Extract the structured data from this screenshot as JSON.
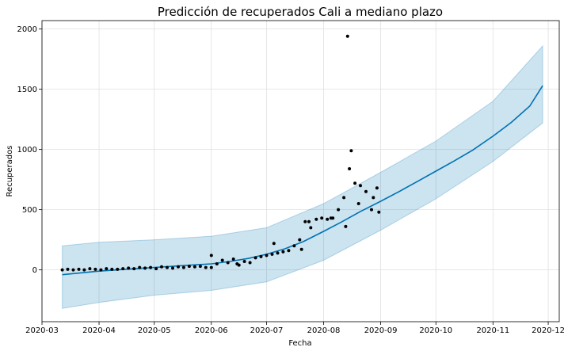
{
  "chart_data": {
    "type": "line",
    "title": "Predicción de recuperados Cali a mediano plazo",
    "xlabel": "Fecha",
    "ylabel": "Recuperados",
    "x_axis": "date",
    "x_range": [
      "2020-03-01",
      "2020-12-07"
    ],
    "ylim": [
      -430,
      2070
    ],
    "x_ticks": [
      "2020-03-01",
      "2020-04-01",
      "2020-05-01",
      "2020-06-01",
      "2020-07-01",
      "2020-08-01",
      "2020-09-01",
      "2020-10-01",
      "2020-11-01",
      "2020-12-01"
    ],
    "x_tick_labels": [
      "2020-03",
      "2020-04",
      "2020-05",
      "2020-06",
      "2020-07",
      "2020-08",
      "2020-09",
      "2020-10",
      "2020-11",
      "2020-12"
    ],
    "y_ticks": [
      0,
      500,
      1000,
      1500,
      2000
    ],
    "y_tick_labels": [
      "0",
      "500",
      "1000",
      "1500",
      "2000"
    ],
    "grid": true,
    "colors": {
      "forecast": "#0072B2",
      "interval": "#0072B2",
      "observed": "#000000"
    },
    "series": [
      {
        "role": "forecast",
        "x": [
          "2020-03-12",
          "2020-03-22",
          "2020-04-01",
          "2020-04-11",
          "2020-04-21",
          "2020-05-01",
          "2020-05-11",
          "2020-05-21",
          "2020-06-01",
          "2020-06-11",
          "2020-06-21",
          "2020-07-01",
          "2020-07-11",
          "2020-07-21",
          "2020-08-01",
          "2020-08-11",
          "2020-08-21",
          "2020-09-01",
          "2020-09-11",
          "2020-09-21",
          "2020-10-01",
          "2020-10-11",
          "2020-10-21",
          "2020-11-01",
          "2020-11-11",
          "2020-11-21",
          "2020-11-28"
        ],
        "values": [
          -40,
          -25,
          -10,
          0,
          10,
          20,
          30,
          40,
          50,
          70,
          95,
          130,
          175,
          235,
          320,
          400,
          485,
          570,
          650,
          735,
          820,
          905,
          995,
          1110,
          1225,
          1360,
          1530
        ]
      },
      {
        "role": "interval_upper",
        "x": [
          "2020-03-12",
          "2020-04-01",
          "2020-05-01",
          "2020-06-01",
          "2020-07-01",
          "2020-08-01",
          "2020-09-01",
          "2020-10-01",
          "2020-11-01",
          "2020-11-28"
        ],
        "values": [
          200,
          230,
          250,
          280,
          350,
          550,
          810,
          1070,
          1400,
          1860
        ]
      },
      {
        "role": "interval_lower",
        "x": [
          "2020-03-12",
          "2020-04-01",
          "2020-05-01",
          "2020-06-01",
          "2020-07-01",
          "2020-08-01",
          "2020-09-01",
          "2020-10-01",
          "2020-11-01",
          "2020-11-28"
        ],
        "values": [
          -320,
          -270,
          -210,
          -170,
          -100,
          80,
          330,
          590,
          900,
          1220
        ]
      },
      {
        "role": "observed",
        "x": [
          "2020-03-12",
          "2020-03-15",
          "2020-03-18",
          "2020-03-21",
          "2020-03-24",
          "2020-03-27",
          "2020-03-30",
          "2020-04-02",
          "2020-04-05",
          "2020-04-08",
          "2020-04-11",
          "2020-04-14",
          "2020-04-17",
          "2020-04-20",
          "2020-04-23",
          "2020-04-26",
          "2020-04-29",
          "2020-05-02",
          "2020-05-05",
          "2020-05-08",
          "2020-05-11",
          "2020-05-14",
          "2020-05-17",
          "2020-05-20",
          "2020-05-23",
          "2020-05-26",
          "2020-05-29",
          "2020-06-01",
          "2020-06-04",
          "2020-06-07",
          "2020-06-10",
          "2020-06-13",
          "2020-06-16",
          "2020-06-19",
          "2020-06-22",
          "2020-06-25",
          "2020-06-28",
          "2020-07-01",
          "2020-07-04",
          "2020-07-07",
          "2020-07-10",
          "2020-07-13",
          "2020-07-16",
          "2020-07-19",
          "2020-07-22",
          "2020-07-25",
          "2020-07-28",
          "2020-07-31",
          "2020-08-03",
          "2020-08-06",
          "2020-08-09",
          "2020-08-12",
          "2020-08-14",
          "2020-08-15",
          "2020-08-16",
          "2020-08-18",
          "2020-08-21",
          "2020-08-24",
          "2020-08-27",
          "2020-08-30",
          "2020-08-31",
          "2020-06-01",
          "2020-06-15",
          "2020-07-05",
          "2020-07-24",
          "2020-08-05",
          "2020-08-13",
          "2020-08-20",
          "2020-08-28",
          "2020-07-20"
        ],
        "values": [
          0,
          5,
          0,
          5,
          0,
          10,
          5,
          0,
          10,
          5,
          5,
          10,
          15,
          10,
          20,
          15,
          20,
          10,
          25,
          20,
          15,
          25,
          20,
          30,
          25,
          30,
          20,
          120,
          50,
          80,
          60,
          90,
          40,
          70,
          60,
          100,
          110,
          120,
          130,
          140,
          150,
          160,
          200,
          250,
          400,
          350,
          420,
          430,
          420,
          430,
          500,
          600,
          1940,
          840,
          990,
          720,
          700,
          650,
          500,
          680,
          480,
          20,
          50,
          220,
          400,
          430,
          360,
          550,
          600,
          170
        ]
      }
    ]
  }
}
